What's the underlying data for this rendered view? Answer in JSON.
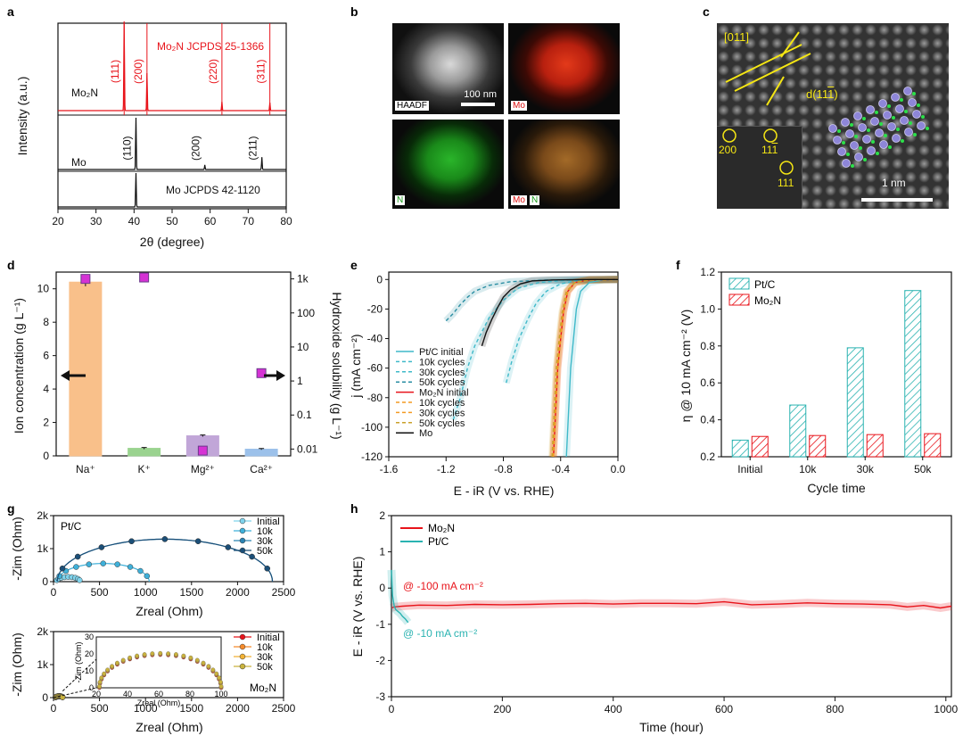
{
  "panel_letters": [
    "a",
    "b",
    "c",
    "d",
    "e",
    "f",
    "g",
    "h"
  ],
  "colors": {
    "red": "#e8141b",
    "cyan": "#3fb9c9",
    "teal": "#2ab3b1",
    "black": "#111111",
    "orange": "#f9c08a",
    "green": "#9ad38f",
    "purple": "#c1a6d8",
    "blue": "#9cc1ea",
    "magenta": "#d532d4"
  },
  "micro": {
    "haadf_label": "HAADF",
    "scale_b": "100 nm",
    "mo_label": "Mo",
    "n_label": "N",
    "c_dir": "[011]",
    "c_d": "d(11",
    "c_d_bar": "1",
    "c_d_end": ")",
    "c_fft_200": "200",
    "c_fft_111a": "11",
    "c_fft_111a_bar": "1",
    "c_fft_111b": "111",
    "c_scale": "1 nm"
  },
  "chart_data": [
    {
      "id": "a",
      "type": "line",
      "xlabel": "2θ (degree)",
      "ylabel": "Intensity (a.u.)",
      "xlim": [
        20,
        80
      ],
      "xticks": [
        "20",
        "30",
        "40",
        "50",
        "60",
        "70",
        "80"
      ],
      "series": [
        {
          "name": "Mo2N",
          "label": "Mo₂N",
          "color": "#e8141b",
          "peaks": [
            {
              "x": 37.4,
              "h": 1.0,
              "hkl": "(111)"
            },
            {
              "x": 43.4,
              "h": 0.42,
              "hkl": "(200)"
            },
            {
              "x": 63.1,
              "h": 0.1,
              "hkl": "(220)"
            },
            {
              "x": 75.7,
              "h": 0.09,
              "hkl": "(311)"
            }
          ]
        },
        {
          "name": "Mo",
          "label": "Mo",
          "color": "#111111",
          "peaks": [
            {
              "x": 40.5,
              "h": 1.0,
              "hkl": "(110)"
            },
            {
              "x": 58.6,
              "h": 0.09,
              "hkl": "(200)"
            },
            {
              "x": 73.6,
              "h": 0.24,
              "hkl": "(211)"
            }
          ]
        },
        {
          "name": "Mo JCPDS 42-1120",
          "label": "Mo JCPDS 42-1120",
          "color": "#111111",
          "peaks": [
            {
              "x": 40.5,
              "h": 1.0
            }
          ]
        }
      ],
      "ref_lines": [
        37.4,
        43.4,
        63.1,
        75.7
      ],
      "ref_label": "Mo₂N JCPDS 25-1366"
    },
    {
      "id": "d",
      "type": "bar",
      "categories": [
        "Na⁺",
        "K⁺",
        "Mg²⁺",
        "Ca²⁺"
      ],
      "values": [
        10.4,
        0.45,
        1.2,
        0.4
      ],
      "errors": [
        0.25,
        0.05,
        0.05,
        0.04
      ],
      "bar_colors": [
        "#f9c08a",
        "#9ad38f",
        "#c1a6d8",
        "#9cc1ea"
      ],
      "hydroxide_solubility": [
        1000,
        1100,
        0.009,
        1.7
      ],
      "ylabel": "Ion concentration (g L⁻¹)",
      "y2label": "Hydroxide solubility (g L⁻¹)",
      "ylim": [
        0,
        11
      ],
      "yticks": [
        "0",
        "2",
        "4",
        "6",
        "8",
        "10"
      ],
      "y2ticks": [
        "0.01",
        "0.1",
        "1",
        "10",
        "100",
        "1k"
      ]
    },
    {
      "id": "e",
      "type": "line",
      "xlabel": "E - iR (V vs. RHE)",
      "ylabel": "j (mA cm⁻²)",
      "xlim": [
        -1.6,
        0.0
      ],
      "ylim": [
        -120,
        5
      ],
      "xticks": [
        "-1.6",
        "-1.2",
        "-0.8",
        "-0.4",
        "0.0"
      ],
      "yticks": [
        "0",
        "-20",
        "-40",
        "-60",
        "-80",
        "-100",
        "-120"
      ],
      "series": [
        {
          "name": "Pt/C initial",
          "color": "#3fb9c9",
          "dash": false,
          "x": [
            -0.36,
            -0.35,
            -0.34,
            -0.33,
            -0.31,
            -0.29,
            -0.26,
            -0.2,
            -0.1,
            0.0
          ],
          "y": [
            -120,
            -100,
            -80,
            -60,
            -40,
            -20,
            -8,
            -2,
            -0.3,
            0
          ]
        },
        {
          "name": "10k cycles",
          "color": "#3fb9c9",
          "dash": true,
          "x": [
            -0.78,
            -0.74,
            -0.69,
            -0.63,
            -0.57,
            -0.5,
            -0.4,
            -0.3,
            -0.15,
            0.0
          ],
          "y": [
            -70,
            -55,
            -40,
            -27,
            -16,
            -8,
            -3,
            -1,
            -0.2,
            0
          ]
        },
        {
          "name": "30k cycles",
          "color": "#3fb9c9",
          "dash": true,
          "x": [
            -1.15,
            -1.1,
            -1.05,
            -1.0,
            -0.9,
            -0.8,
            -0.7,
            -0.55,
            -0.35,
            0.0
          ],
          "y": [
            -95,
            -80,
            -60,
            -45,
            -26,
            -14,
            -6,
            -2,
            -0.5,
            0
          ]
        },
        {
          "name": "50k cycles",
          "color": "#2a8ea3",
          "dash": true,
          "x": [
            -1.2,
            -1.15,
            -1.1,
            -1.05,
            -1.0,
            -0.9,
            -0.75,
            -0.5,
            0.0
          ],
          "y": [
            -28,
            -23,
            -17,
            -12,
            -8,
            -4,
            -1.5,
            -0.4,
            0
          ]
        },
        {
          "name": "Mo₂N initial",
          "color": "#e8141b",
          "dash": false,
          "x": [
            -0.45,
            -0.44,
            -0.43,
            -0.42,
            -0.4,
            -0.38,
            -0.35,
            -0.3,
            -0.2,
            0.0
          ],
          "y": [
            -120,
            -100,
            -80,
            -60,
            -40,
            -22,
            -8,
            -2,
            -0.3,
            0
          ]
        },
        {
          "name": "10k cycles",
          "color": "#f39a22",
          "dash": true,
          "x": [
            -0.45,
            -0.44,
            -0.43,
            -0.42,
            -0.4,
            -0.38,
            -0.35,
            -0.3,
            -0.2,
            0.0
          ],
          "y": [
            -120,
            -100,
            -80,
            -60,
            -40,
            -22,
            -8,
            -2,
            -0.3,
            0
          ]
        },
        {
          "name": "30k cycles",
          "color": "#f39a22",
          "dash": true,
          "x": [
            -0.455,
            -0.445,
            -0.435,
            -0.425,
            -0.405,
            -0.385,
            -0.355,
            -0.3,
            -0.2,
            0.0
          ],
          "y": [
            -120,
            -100,
            -80,
            -60,
            -40,
            -22,
            -8,
            -2,
            -0.3,
            0
          ]
        },
        {
          "name": "50k cycles",
          "color": "#c9a12a",
          "dash": true,
          "x": [
            -0.46,
            -0.45,
            -0.44,
            -0.43,
            -0.41,
            -0.39,
            -0.36,
            -0.3,
            -0.2,
            0.0
          ],
          "y": [
            -120,
            -100,
            -80,
            -60,
            -40,
            -22,
            -8,
            -2,
            -0.3,
            0
          ]
        },
        {
          "name": "Mo",
          "color": "#111111",
          "dash": false,
          "x": [
            -0.95,
            -0.92,
            -0.88,
            -0.84,
            -0.8,
            -0.75,
            -0.68,
            -0.6,
            -0.45,
            -0.2,
            0.0
          ],
          "y": [
            -45,
            -36,
            -27,
            -19,
            -12,
            -7,
            -3,
            -1,
            -0.3,
            0,
            0
          ]
        }
      ]
    },
    {
      "id": "f",
      "type": "bar",
      "categories": [
        "Initial",
        "10k",
        "30k",
        "50k"
      ],
      "series": [
        {
          "name": "Pt/C",
          "label": "Pt/C",
          "color": "#2ab3b1",
          "values": [
            0.29,
            0.48,
            0.79,
            1.1
          ]
        },
        {
          "name": "Mo2N",
          "label": "Mo₂N",
          "color": "#e8141b",
          "values": [
            0.31,
            0.315,
            0.32,
            0.325
          ]
        }
      ],
      "xlabel": "Cycle time",
      "ylabel": "η @ 10 mA cm⁻² (V)",
      "ylim": [
        0.2,
        1.2
      ],
      "yticks": [
        "0.2",
        "0.4",
        "0.6",
        "0.8",
        "1.0",
        "1.2"
      ]
    },
    {
      "id": "g1",
      "type": "scatter",
      "tag": "Pt/C",
      "xlabel": "Zreal (Ohm)",
      "ylabel": "-Zim (Ohm)",
      "xlim": [
        0,
        2500
      ],
      "ylim": [
        0,
        2000
      ],
      "xticks": [
        "0",
        "500",
        "1000",
        "1500",
        "2000",
        "2500"
      ],
      "yticks": [
        "0",
        "1k",
        "2k"
      ],
      "series": [
        {
          "name": "Initial",
          "color": "#7fd3ec",
          "r": [
            30,
            290
          ]
        },
        {
          "name": "10k",
          "color": "#3fb0d9",
          "r": [
            40,
            1040
          ]
        },
        {
          "name": "30k",
          "color": "#2b83b2",
          "r": [
            40,
            2380
          ]
        },
        {
          "name": "50k",
          "color": "#1b4f78",
          "r": [
            40,
            2380
          ]
        }
      ]
    },
    {
      "id": "g2",
      "type": "scatter",
      "tag": "Mo₂N",
      "xlabel": "Zreal (Ohm)",
      "ylabel": "-Zim (Ohm)",
      "xlim": [
        0,
        2500
      ],
      "ylim": [
        0,
        2000
      ],
      "xticks": [
        "0",
        "500",
        "1000",
        "1500",
        "2000",
        "2500"
      ],
      "yticks": [
        "0",
        "1k",
        "2k"
      ],
      "inset": {
        "xlim": [
          20,
          100
        ],
        "ylim": [
          0,
          30
        ],
        "xticks": [
          "20",
          "40",
          "60",
          "80",
          "100"
        ],
        "yticks": [
          "0",
          "10",
          "20",
          "30"
        ],
        "xlabel": "Zreal (Ohm)",
        "ylabel": "-Zim (Ohm)"
      },
      "series": [
        {
          "name": "Initial",
          "color": "#e8141b",
          "r": [
            22,
            100
          ]
        },
        {
          "name": "10k",
          "color": "#f58a2a",
          "r": [
            22,
            100
          ]
        },
        {
          "name": "30k",
          "color": "#f2b134",
          "r": [
            22,
            100
          ]
        },
        {
          "name": "50k",
          "color": "#c9b23e",
          "r": [
            22,
            100
          ]
        }
      ]
    },
    {
      "id": "h",
      "type": "line",
      "xlabel": "Time (hour)",
      "ylabel": "E - iR (V vs. RHE)",
      "xlim": [
        0,
        1010
      ],
      "ylim": [
        -3,
        2
      ],
      "xticks": [
        "0",
        "200",
        "400",
        "600",
        "800",
        "1000"
      ],
      "yticks": [
        "2",
        "1",
        "0",
        "-1",
        "-2",
        "-3"
      ],
      "series": [
        {
          "name": "Mo2N",
          "label": "Mo₂N",
          "color": "#e8141b",
          "x": [
            0,
            5,
            20,
            50,
            100,
            150,
            200,
            250,
            300,
            350,
            400,
            450,
            500,
            550,
            600,
            650,
            700,
            750,
            800,
            850,
            900,
            930,
            960,
            990,
            1010
          ],
          "y": [
            -0.55,
            -0.52,
            -0.5,
            -0.47,
            -0.48,
            -0.45,
            -0.46,
            -0.45,
            -0.43,
            -0.42,
            -0.44,
            -0.42,
            -0.42,
            -0.43,
            -0.38,
            -0.46,
            -0.44,
            -0.41,
            -0.43,
            -0.44,
            -0.46,
            -0.52,
            -0.48,
            -0.55,
            -0.5
          ]
        },
        {
          "name": "PtC",
          "label": "Pt/C",
          "color": "#2ab3b1",
          "x": [
            0,
            2,
            5,
            8,
            12,
            16,
            20,
            25,
            30
          ],
          "y": [
            0.5,
            -0.2,
            -0.5,
            -0.6,
            -0.65,
            -0.7,
            -0.78,
            -0.85,
            -0.95
          ]
        }
      ],
      "annotations": [
        "@ -100 mA cm⁻²",
        "@ -10 mA cm⁻²"
      ]
    }
  ]
}
